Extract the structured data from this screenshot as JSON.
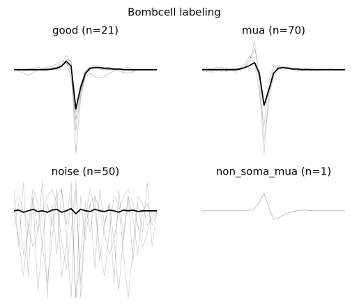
{
  "title": "Bombcell labeling",
  "chart_data": [
    {
      "type": "line",
      "title": "good (n=21)",
      "ylim": [
        -1.2,
        0.42
      ],
      "series": [
        {
          "color": "rgba(0,0,0,0.25)",
          "values": [
            0,
            0.01,
            -0.02,
            0,
            0.01,
            0,
            -0.01,
            0,
            0.02,
            0.03,
            0.08,
            0.2,
            0.1,
            -1.18,
            -0.4,
            -0.08,
            0,
            0.03,
            0.02,
            0.01,
            0,
            0,
            0.01,
            0,
            0,
            -0.01,
            0,
            0,
            0,
            0,
            0
          ]
        },
        {
          "color": "rgba(0,0,0,0.25)",
          "values": [
            0,
            -0.02,
            -0.05,
            -0.08,
            -0.05,
            0,
            0.02,
            0.03,
            0.05,
            0.08,
            0.12,
            0.1,
            -0.1,
            -0.7,
            -0.3,
            -0.1,
            -0.05,
            -0.1,
            -0.12,
            -0.1,
            -0.05,
            -0.02,
            0,
            0.02,
            0.03,
            0.01,
            0,
            0,
            0,
            0,
            0
          ]
        },
        {
          "color": "rgba(0,0,0,0.25)",
          "values": [
            0,
            0,
            0,
            0.01,
            0.02,
            0.03,
            0.02,
            0.01,
            0,
            0,
            0.03,
            0.15,
            0.12,
            -0.85,
            -0.35,
            -0.05,
            0.05,
            0.06,
            0.04,
            0.02,
            0,
            0,
            -0.02,
            -0.04,
            -0.05,
            -0.03,
            0,
            0,
            0,
            0,
            0
          ]
        },
        {
          "color": "rgba(0,0,0,0.25)",
          "values": [
            0,
            0,
            0.01,
            0,
            -0.01,
            0,
            0,
            0.01,
            0.02,
            0.04,
            0.06,
            0.09,
            0,
            -0.6,
            -0.2,
            -0.02,
            0.03,
            0.02,
            0.01,
            0,
            0,
            0,
            0,
            0,
            0,
            0,
            0,
            0,
            0,
            0,
            0
          ]
        },
        {
          "color": "#000000",
          "values": [
            0,
            0,
            0,
            0,
            0,
            0,
            0,
            0,
            0.01,
            0.02,
            0.05,
            0.12,
            0.05,
            -0.55,
            -0.25,
            -0.05,
            0.02,
            0.03,
            0.03,
            0.02,
            0.02,
            0.01,
            0.01,
            0,
            0,
            0,
            0,
            0,
            0,
            0,
            0
          ]
        }
      ]
    },
    {
      "type": "line",
      "title": "mua (n=70)",
      "ylim": [
        -1.2,
        0.42
      ],
      "series": [
        {
          "color": "rgba(0,0,0,0.2)",
          "values": [
            0,
            0.03,
            -0.02,
            0.04,
            -0.03,
            0.02,
            0.01,
            -0.04,
            0.03,
            0.05,
            0.1,
            0.4,
            -0.2,
            -1.2,
            -0.3,
            0.05,
            0.03,
            -0.02,
            0.04,
            0.01,
            -0.03,
            0.02,
            0,
            0.03,
            -0.02,
            0.01,
            0,
            0.02,
            -0.01,
            0,
            0
          ]
        },
        {
          "color": "rgba(0,0,0,0.2)",
          "values": [
            0,
            -0.03,
            0.02,
            -0.01,
            0.03,
            -0.02,
            0.02,
            0.01,
            0.03,
            0.08,
            0.2,
            0.1,
            -0.3,
            -0.8,
            -0.15,
            0.05,
            0.06,
            0.04,
            0.02,
            0,
            -0.02,
            0.01,
            0.02,
            -0.01,
            0,
            0.01,
            0,
            0,
            0,
            0,
            0
          ]
        },
        {
          "color": "rgba(0,0,0,0.2)",
          "values": [
            0,
            0.02,
            0.01,
            -0.02,
            0,
            0.03,
            -0.01,
            0,
            0.02,
            0.04,
            0.06,
            0.1,
            -0.1,
            -0.5,
            -0.35,
            -0.1,
            0,
            0.03,
            0.02,
            0.01,
            0,
            0,
            0.01,
            0,
            0,
            0,
            0,
            0,
            0,
            0,
            0
          ]
        },
        {
          "color": "rgba(0,0,0,0.2)",
          "values": [
            0,
            0,
            -0.04,
            0.02,
            0.04,
            -0.03,
            0,
            0.02,
            -0.02,
            0.05,
            0.15,
            0.3,
            0,
            -1.0,
            -0.45,
            -0.05,
            0.04,
            0.05,
            0.03,
            0.02,
            0,
            -0.02,
            0.02,
            0,
            0.01,
            0,
            0,
            0,
            0,
            0,
            0
          ]
        },
        {
          "color": "#000000",
          "values": [
            0,
            0,
            0,
            0,
            0,
            0,
            0,
            0,
            0.01,
            0.03,
            0.06,
            0.1,
            -0.05,
            -0.5,
            -0.28,
            -0.05,
            0.02,
            0.03,
            0.02,
            0.01,
            0.01,
            0,
            0,
            0,
            0,
            0,
            0,
            0,
            0,
            0,
            0
          ]
        }
      ]
    },
    {
      "type": "line",
      "title": "noise (n=50)",
      "ylim": [
        -1.2,
        0.42
      ],
      "series": [
        {
          "color": "rgba(0,0,0,0.18)",
          "values": [
            0.3,
            -0.5,
            0.4,
            -0.9,
            0.2,
            -0.3,
            0.42,
            -1.2,
            0.1,
            -0.6,
            0.3,
            -0.2,
            0.4,
            -1.2,
            0.2,
            -0.4,
            0.1,
            -0.8,
            0.3,
            -0.2,
            0.1,
            -1.0,
            0.3,
            -0.4,
            0.2,
            -0.7,
            0.1,
            -0.3,
            0.4,
            -0.5,
            0
          ]
        },
        {
          "color": "rgba(0,0,0,0.18)",
          "values": [
            -0.2,
            0.1,
            -0.6,
            -0.3,
            0.2,
            -1.1,
            -0.4,
            0.1,
            -0.2,
            0.3,
            -0.9,
            -0.5,
            0.2,
            -1.2,
            -0.6,
            0.1,
            -0.3,
            0.2,
            -0.7,
            -0.2,
            0.1,
            -0.4,
            -1.1,
            -0.3,
            0.2,
            -0.1,
            -0.6,
            0,
            0.1,
            -0.2,
            0
          ]
        },
        {
          "color": "rgba(0,0,0,0.18)",
          "values": [
            0.1,
            0.2,
            0,
            -0.2,
            -0.5,
            -0.3,
            0,
            0.2,
            0.3,
            0.1,
            -0.4,
            -0.8,
            -0.3,
            0.42,
            -1.2,
            -0.2,
            0.1,
            0.2,
            0,
            -0.3,
            -0.6,
            -0.4,
            0,
            0.2,
            0.3,
            0.1,
            -0.2,
            -0.5,
            -0.3,
            0,
            0
          ]
        },
        {
          "color": "rgba(0,0,0,0.18)",
          "values": [
            0,
            -0.4,
            -0.9,
            -0.2,
            0.3,
            0.1,
            -0.5,
            -1.0,
            -0.4,
            0.2,
            0.3,
            -0.3,
            -1.2,
            0.3,
            -1.0,
            -0.1,
            0.3,
            0,
            -0.5,
            -0.9,
            -0.3,
            0.2,
            0.1,
            -0.6,
            -1.2,
            -0.5,
            0.2,
            0.1,
            -0.2,
            -0.1,
            0
          ]
        },
        {
          "color": "#000000",
          "values": [
            0,
            0.01,
            -0.02,
            0,
            0.02,
            -0.01,
            0,
            -0.02,
            0.01,
            0.02,
            -0.02,
            0,
            0.03,
            -0.04,
            0.02,
            0,
            -0.01,
            0.02,
            0,
            -0.01,
            0.01,
            0,
            -0.02,
            0.01,
            0,
            0.01,
            -0.01,
            0,
            0,
            0,
            0
          ]
        }
      ]
    },
    {
      "type": "line",
      "title": "non_soma_mua (n=1)",
      "ylim": [
        -1.2,
        0.42
      ],
      "series": [
        {
          "color": "rgba(0,0,0,0.3)",
          "values": [
            0,
            0,
            0,
            0,
            0,
            0,
            0,
            0,
            0,
            0,
            0.01,
            0.03,
            0.12,
            0.24,
            0.05,
            -0.12,
            -0.1,
            -0.06,
            -0.03,
            -0.01,
            0,
            0.01,
            0.01,
            0,
            0,
            0,
            0,
            0,
            0,
            0,
            0
          ]
        }
      ]
    }
  ]
}
